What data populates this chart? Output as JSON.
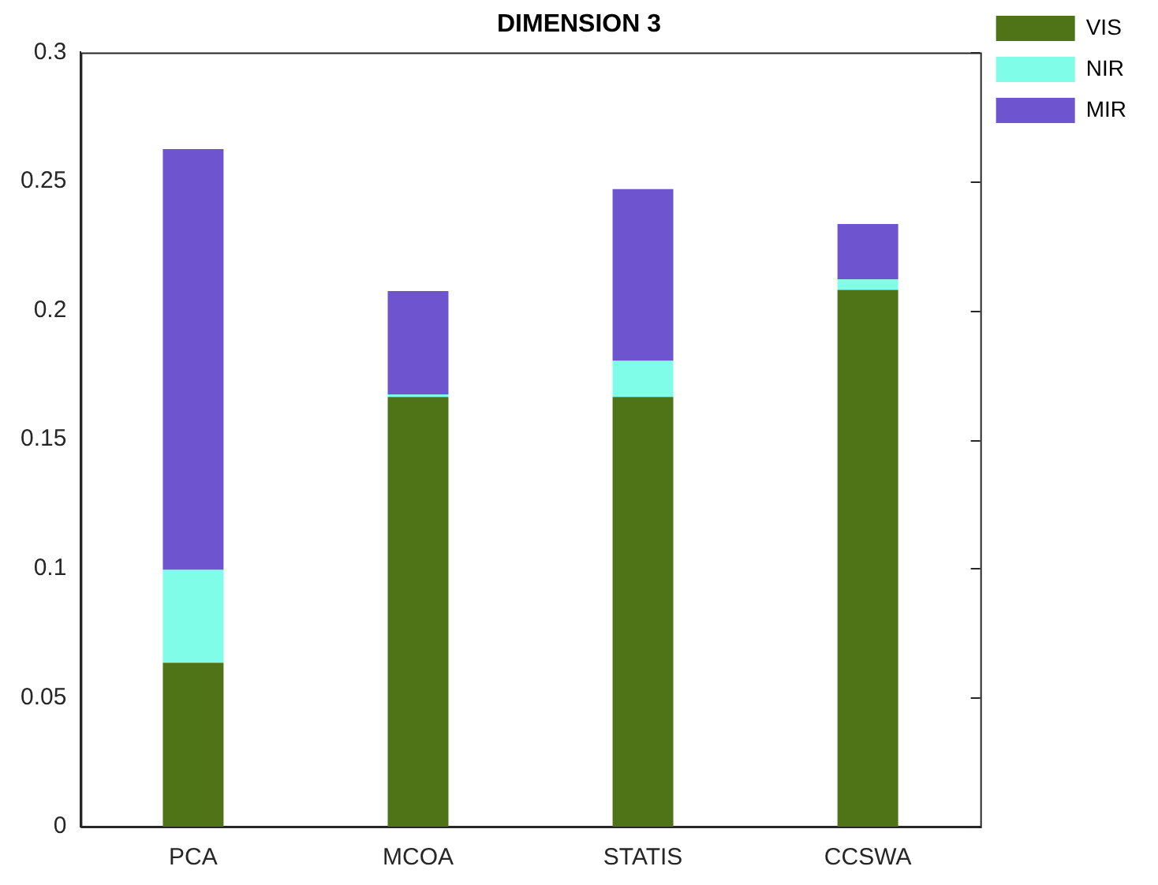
{
  "chart_data": {
    "type": "bar",
    "title": "DIMENSION 3",
    "categories": [
      "PCA",
      "MCOA",
      "STATIS",
      "CCSWA"
    ],
    "stacked": true,
    "series": [
      {
        "name": "VIS",
        "color": "#4f7417",
        "values": [
          0.0635,
          0.1665,
          0.1665,
          0.208
        ]
      },
      {
        "name": "NIR",
        "color": "#7ffde8",
        "values": [
          0.036,
          0.001,
          0.014,
          0.004
        ]
      },
      {
        "name": "MIR",
        "color": "#6e55cf",
        "values": [
          0.163,
          0.04,
          0.0665,
          0.0215
        ]
      }
    ],
    "ylim": [
      0,
      0.3
    ],
    "yticks": [
      0,
      0.05,
      0.1,
      0.15,
      0.2,
      0.25,
      0.3
    ],
    "grid": false,
    "legend": "top right"
  }
}
